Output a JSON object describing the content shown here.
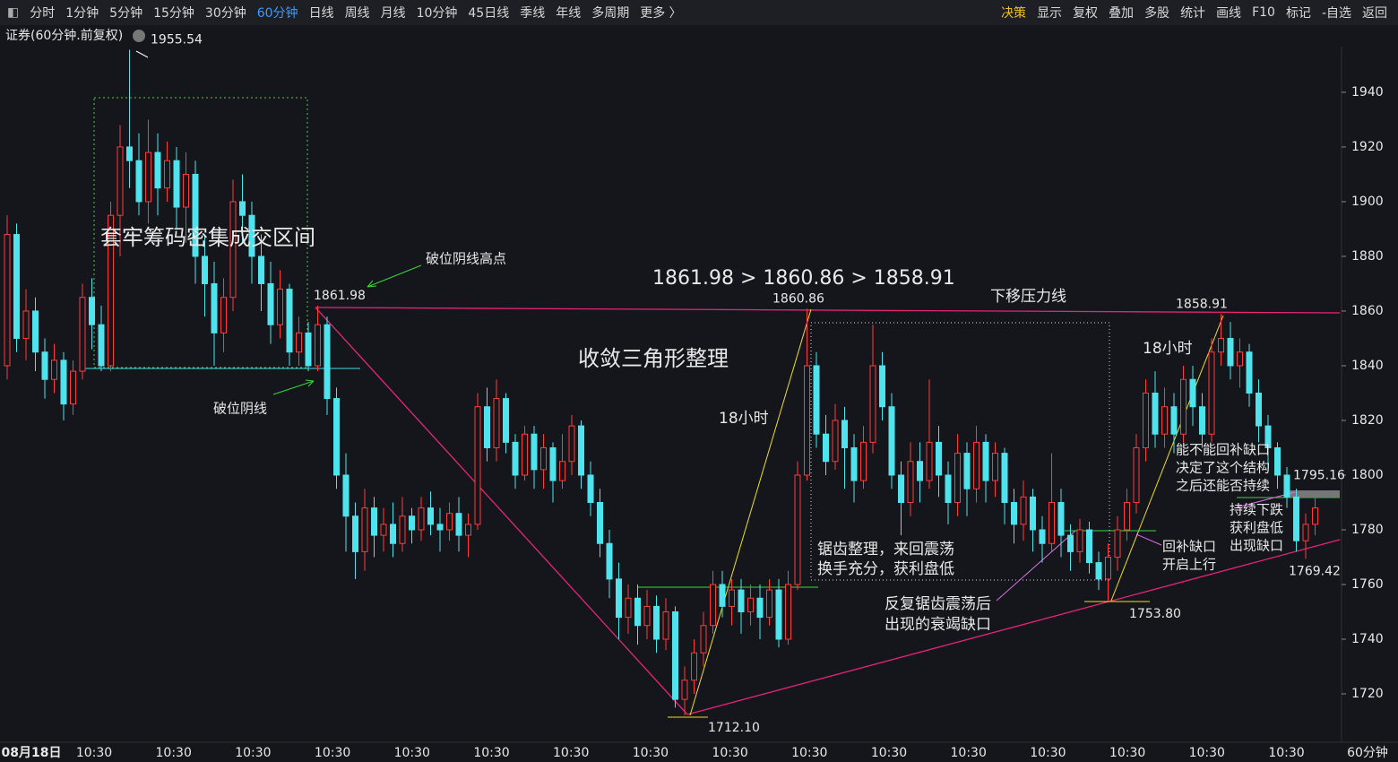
{
  "toolbar": {
    "periods": [
      "分时",
      "1分钟",
      "5分钟",
      "15分钟",
      "30分钟",
      "60分钟",
      "日线",
      "周线",
      "月线",
      "10分钟",
      "45日线",
      "季线",
      "年线",
      "多周期",
      "更多 〉"
    ],
    "active_period": 5,
    "tools": [
      "决策",
      "显示",
      "复权",
      "叠加",
      "多股",
      "统计",
      "画线",
      "F10",
      "标记",
      "-自选",
      "返回"
    ]
  },
  "header": {
    "title": "证券(60分钟.前复权)"
  },
  "chart_data": {
    "type": "candlestick",
    "open": [
      1840,
      1888,
      1850,
      1860,
      1845,
      1835,
      1842,
      1826,
      1838,
      1865,
      1855,
      1840,
      1895,
      1920,
      1915,
      1900,
      1918,
      1905,
      1915,
      1898,
      1910,
      1880,
      1870,
      1852,
      1865,
      1900,
      1895,
      1880,
      1870,
      1855,
      1868,
      1845,
      1852,
      1840,
      1855,
      1828,
      1800,
      1785,
      1772,
      1788,
      1778,
      1782,
      1775,
      1785,
      1780,
      1788,
      1782,
      1780,
      1786,
      1778,
      1782,
      1825,
      1810,
      1828,
      1812,
      1800,
      1815,
      1802,
      1810,
      1798,
      1805,
      1818,
      1800,
      1790,
      1775,
      1762,
      1748,
      1755,
      1745,
      1752,
      1740,
      1750,
      1718,
      1725,
      1735,
      1745,
      1760,
      1752,
      1758,
      1750,
      1755,
      1748,
      1758,
      1740,
      1760,
      1800,
      1840,
      1815,
      1805,
      1820,
      1810,
      1798,
      1812,
      1840,
      1825,
      1800,
      1790,
      1805,
      1798,
      1812,
      1800,
      1790,
      1808,
      1795,
      1812,
      1798,
      1808,
      1790,
      1782,
      1792,
      1780,
      1775,
      1790,
      1778,
      1772,
      1780,
      1768,
      1762,
      1770,
      1780,
      1790,
      1810,
      1830,
      1815,
      1825,
      1815,
      1835,
      1825,
      1815,
      1845,
      1850,
      1840,
      1845,
      1830,
      1818,
      1810,
      1800,
      1792,
      1776,
      1782
    ],
    "high": [
      1895,
      1892,
      1868,
      1865,
      1850,
      1848,
      1845,
      1842,
      1870,
      1872,
      1862,
      1900,
      1928,
      1955.54,
      1925,
      1930,
      1925,
      1922,
      1920,
      1918,
      1915,
      1888,
      1878,
      1872,
      1908,
      1910,
      1900,
      1888,
      1878,
      1875,
      1870,
      1858,
      1856,
      1861.98,
      1858,
      1832,
      1808,
      1790,
      1795,
      1792,
      1788,
      1790,
      1792,
      1788,
      1792,
      1794,
      1788,
      1790,
      1792,
      1786,
      1830,
      1832,
      1835,
      1830,
      1815,
      1818,
      1818,
      1815,
      1812,
      1815,
      1822,
      1820,
      1805,
      1795,
      1780,
      1768,
      1760,
      1760,
      1758,
      1756,
      1755,
      1752,
      1730,
      1740,
      1750,
      1765,
      1765,
      1762,
      1762,
      1760,
      1760,
      1762,
      1762,
      1765,
      1805,
      1860.86,
      1845,
      1822,
      1826,
      1825,
      1815,
      1818,
      1855,
      1845,
      1830,
      1805,
      1812,
      1812,
      1835,
      1818,
      1805,
      1815,
      1812,
      1818,
      1815,
      1812,
      1810,
      1795,
      1798,
      1795,
      1785,
      1808,
      1795,
      1782,
      1784,
      1783,
      1772,
      1775,
      1785,
      1795,
      1815,
      1835,
      1838,
      1832,
      1830,
      1840,
      1840,
      1830,
      1850,
      1858.91,
      1856,
      1850,
      1848,
      1835,
      1822,
      1812,
      1803,
      1795,
      1786,
      1792
    ],
    "low": [
      1835,
      1845,
      1842,
      1838,
      1828,
      1830,
      1820,
      1822,
      1835,
      1846,
      1838,
      1838,
      1880,
      1905,
      1895,
      1892,
      1895,
      1900,
      1890,
      1885,
      1870,
      1858,
      1840,
      1845,
      1860,
      1885,
      1870,
      1860,
      1848,
      1850,
      1840,
      1840,
      1838,
      1838,
      1822,
      1795,
      1772,
      1762,
      1765,
      1770,
      1772,
      1770,
      1772,
      1775,
      1776,
      1778,
      1772,
      1776,
      1772,
      1770,
      1780,
      1805,
      1805,
      1808,
      1795,
      1798,
      1795,
      1795,
      1790,
      1795,
      1800,
      1795,
      1785,
      1770,
      1755,
      1740,
      1742,
      1738,
      1740,
      1735,
      1736,
      1715,
      1712.1,
      1720,
      1730,
      1742,
      1748,
      1745,
      1742,
      1745,
      1740,
      1745,
      1737,
      1738,
      1758,
      1798,
      1810,
      1800,
      1802,
      1795,
      1790,
      1795,
      1808,
      1820,
      1795,
      1778,
      1785,
      1790,
      1795,
      1792,
      1782,
      1785,
      1785,
      1790,
      1790,
      1792,
      1782,
      1775,
      1776,
      1772,
      1768,
      1772,
      1770,
      1765,
      1768,
      1764,
      1758,
      1753.8,
      1765,
      1776,
      1786,
      1805,
      1810,
      1810,
      1808,
      1812,
      1818,
      1810,
      1812,
      1840,
      1835,
      1832,
      1825,
      1812,
      1802,
      1795,
      1788,
      1772,
      1769.42,
      1778
    ],
    "close": [
      1888,
      1850,
      1860,
      1845,
      1835,
      1842,
      1826,
      1838,
      1865,
      1855,
      1840,
      1895,
      1920,
      1915,
      1900,
      1918,
      1905,
      1915,
      1898,
      1910,
      1880,
      1870,
      1852,
      1865,
      1900,
      1895,
      1880,
      1870,
      1855,
      1868,
      1845,
      1852,
      1840,
      1855,
      1828,
      1800,
      1785,
      1772,
      1788,
      1778,
      1782,
      1775,
      1785,
      1780,
      1788,
      1782,
      1780,
      1786,
      1778,
      1782,
      1825,
      1810,
      1828,
      1812,
      1800,
      1815,
      1802,
      1810,
      1798,
      1805,
      1818,
      1800,
      1790,
      1775,
      1762,
      1748,
      1755,
      1745,
      1752,
      1740,
      1750,
      1718,
      1725,
      1735,
      1745,
      1760,
      1752,
      1758,
      1750,
      1755,
      1748,
      1758,
      1740,
      1760,
      1800,
      1840,
      1815,
      1805,
      1820,
      1810,
      1798,
      1812,
      1840,
      1825,
      1800,
      1790,
      1805,
      1798,
      1812,
      1800,
      1790,
      1808,
      1795,
      1812,
      1798,
      1808,
      1790,
      1782,
      1792,
      1780,
      1775,
      1790,
      1778,
      1772,
      1780,
      1768,
      1762,
      1770,
      1780,
      1790,
      1810,
      1830,
      1815,
      1825,
      1815,
      1835,
      1825,
      1815,
      1845,
      1850,
      1840,
      1845,
      1830,
      1818,
      1810,
      1800,
      1792,
      1776,
      1782,
      1788
    ],
    "up_color": "#ff3b3b",
    "down_color": "#4fe3ee",
    "ylim": [
      1702.3,
      1956.7
    ],
    "yticks": [
      1720,
      1740,
      1760,
      1780,
      1800,
      1820,
      1840,
      1860,
      1880,
      1900,
      1920,
      1940
    ],
    "x_labels": [
      "08月18日",
      "10:30",
      "10:30",
      "10:30",
      "10:30",
      "10:30",
      "10:30",
      "10:30",
      "10:30",
      "10:30",
      "10:30",
      "10:30",
      "10:30",
      "10:30",
      "10:30",
      "10:30",
      "10:30"
    ],
    "period_label": "60分钟",
    "price_labels": [
      {
        "value": 1955.54,
        "label": "1955.54"
      },
      {
        "value": 1861.98,
        "label": "1861.98"
      },
      {
        "value": 1860.86,
        "label": "1860.86"
      },
      {
        "value": 1858.91,
        "label": "1858.91"
      },
      {
        "value": 1712.1,
        "label": "1712.10"
      },
      {
        "value": 1753.8,
        "label": "1753.80"
      },
      {
        "value": 1769.42,
        "label": "1769.42"
      },
      {
        "value": 1795.16,
        "label": "1795.16"
      }
    ],
    "annotations": [
      "套牢筹码密集成交区间",
      "破位阴线高点",
      "破位阴线",
      "1861.98 > 1860.86 > 1858.91",
      "下移压力线",
      "收敛三角形整理",
      "18小时",
      "18小时",
      "锯齿整理，来回震荡",
      "换手充分，获利盘低",
      "反复锯齿震荡后",
      "出现的衰竭缺口",
      "回补缺口",
      "开启上行",
      "能不能回补缺口",
      "决定了这个结构",
      "之后还能否持续",
      "持续下跌",
      "获利盘低",
      "出现缺口"
    ]
  }
}
